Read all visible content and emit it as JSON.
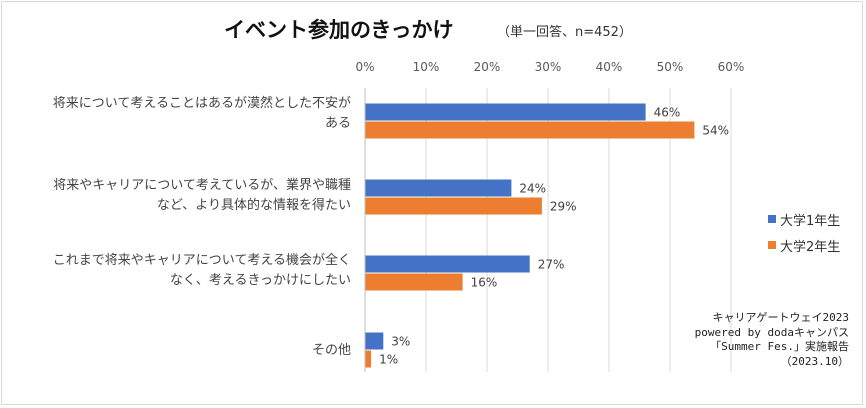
{
  "title": "イベント参加のきっかけ",
  "subtitle": "（単一回答、n=452）",
  "chart_data": {
    "type": "bar",
    "orientation": "horizontal",
    "categories": [
      [
        "将来について考えることはあるが漠然とした不安が",
        "ある"
      ],
      [
        "将来やキャリアについて考えているが、業界や職種",
        "など、より具体的な情報を得たい"
      ],
      [
        "これまで将来やキャリアについて考える機会が全く",
        "なく、考えるきっかけにしたい"
      ],
      [
        "その他"
      ]
    ],
    "series": [
      {
        "name": "大学1年生",
        "color": "#4472c4",
        "values": [
          46,
          24,
          27,
          3
        ]
      },
      {
        "name": "大学2年生",
        "color": "#ed7d31",
        "values": [
          54,
          29,
          16,
          1
        ]
      }
    ],
    "xlim": [
      0,
      60
    ],
    "ticks": [
      "0%",
      "10%",
      "20%",
      "30%",
      "40%",
      "50%",
      "60%"
    ],
    "value_suffix": "%",
    "grid": true,
    "legend_position": "right"
  },
  "source_lines": [
    "キャリアゲートウェイ2023",
    "powered by dodaキャンパス",
    "「Summer Fes.」実施報告",
    "（2023.10）"
  ]
}
